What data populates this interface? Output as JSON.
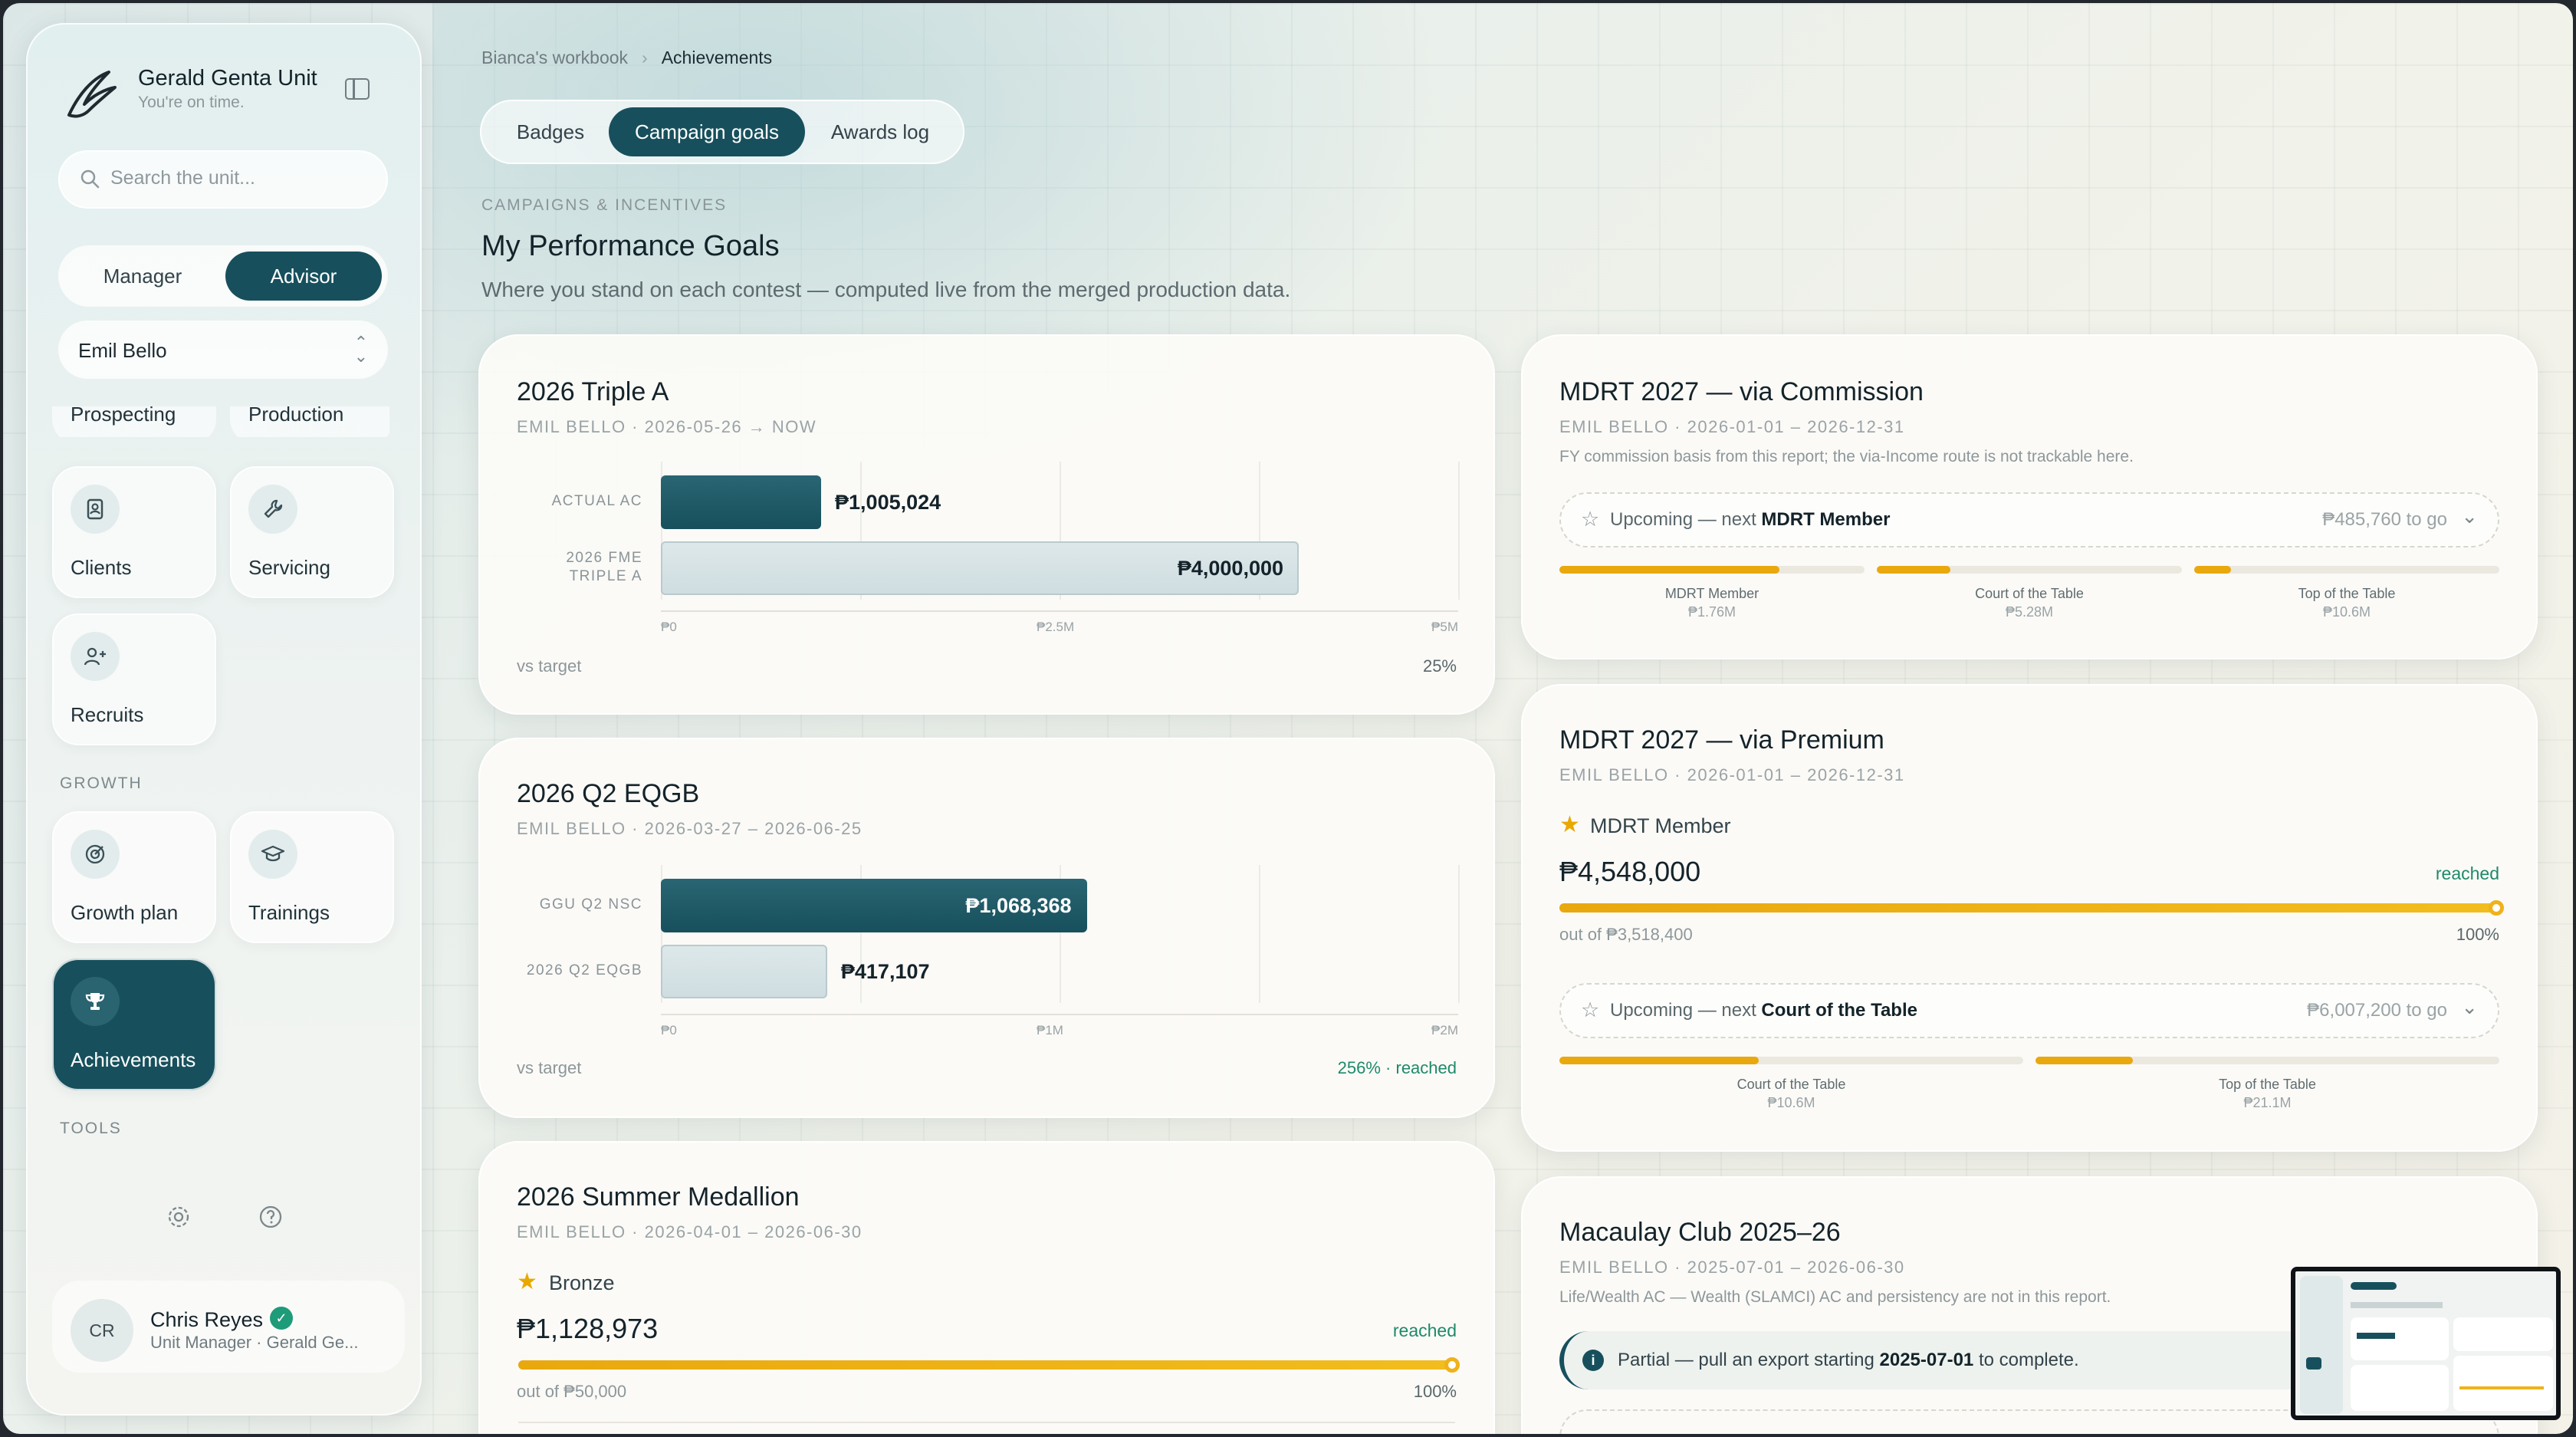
{
  "sidebar": {
    "unit_name": "Gerald Genta Unit",
    "unit_tagline": "You're on time.",
    "search_placeholder": "Search the unit...",
    "role_toggle": {
      "options": [
        "Manager",
        "Advisor"
      ],
      "selected": "Advisor"
    },
    "advisor_select": "Emil Bello",
    "partial_tiles": [
      "Prospecting",
      "Production"
    ],
    "tiles": [
      {
        "label": "Clients",
        "icon": "contacts-book-icon"
      },
      {
        "label": "Servicing",
        "icon": "wrench-icon"
      },
      {
        "label": "Recruits",
        "icon": "user-plus-icon"
      }
    ],
    "section_growth": "GROWTH",
    "growth_tiles": [
      {
        "label": "Growth plan",
        "icon": "target-icon"
      },
      {
        "label": "Trainings",
        "icon": "graduation-cap-icon"
      },
      {
        "label": "Achievements",
        "icon": "trophy-icon",
        "active": true
      }
    ],
    "section_tools": "TOOLS",
    "user": {
      "initials": "CR",
      "name": "Chris Reyes",
      "role": "Unit Manager · Gerald Ge..."
    }
  },
  "breadcrumb": {
    "parent": "Bianca's workbook",
    "current": "Achievements"
  },
  "tabs": [
    "Badges",
    "Campaign goals",
    "Awards log"
  ],
  "active_tab": "Campaign goals",
  "page": {
    "eyebrow": "CAMPAIGNS & INCENTIVES",
    "title": "My Performance Goals",
    "subtitle": "Where you stand on each contest — computed live from the merged production data."
  },
  "cards": {
    "triple_a": {
      "title": "2026 Triple A",
      "meta": "EMIL BELLO · 2026-05-26 → NOW",
      "foot_label": "vs target",
      "foot_value": "25%",
      "chart_data": {
        "type": "bar",
        "orientation": "horizontal",
        "categories": [
          "ACTUAL AC",
          "2026 FME TRIPLE A"
        ],
        "values": [
          1005024,
          4000000
        ],
        "value_labels": [
          "₱1,005,024",
          "₱4,000,000"
        ],
        "xlim": [
          0,
          5000000
        ],
        "ticks": [
          "₱0",
          "₱2.5M",
          "₱5M"
        ]
      }
    },
    "eqgb": {
      "title": "2026 Q2 EQGB",
      "meta": "EMIL BELLO · 2026-03-27 – 2026-06-25",
      "foot_label": "vs target",
      "foot_value": "256% · reached",
      "chart_data": {
        "type": "bar",
        "orientation": "horizontal",
        "categories": [
          "GGU Q2 NSC",
          "2026 Q2 EQGB"
        ],
        "values": [
          1068368,
          417107
        ],
        "value_labels": [
          "₱1,068,368",
          "₱417,107"
        ],
        "xlim": [
          0,
          2000000
        ],
        "ticks": [
          "₱0",
          "₱1M",
          "₱2M"
        ]
      }
    },
    "medallion": {
      "title": "2026 Summer Medallion",
      "meta": "EMIL BELLO · 2026-04-01 – 2026-06-30",
      "tier": "Bronze",
      "amount": "₱1,128,973",
      "status": "reached",
      "out_of": "out of ₱50,000",
      "percent": "100%",
      "progress": 1.0
    },
    "mdrt_commission": {
      "title": "MDRT 2027 — via Commission",
      "meta": "EMIL BELLO · 2026-01-01 – 2026-12-31",
      "note": "FY commission basis from this report; the via-Income route is not trackable here.",
      "upcoming_prefix": "Upcoming — next",
      "upcoming_tier": "MDRT Member",
      "to_go": "₱485,760 to go",
      "segments": [
        {
          "name": "MDRT Member",
          "amount": "₱1.76M",
          "fill": 0.72
        },
        {
          "name": "Court of the Table",
          "amount": "₱5.28M",
          "fill": 0.24
        },
        {
          "name": "Top of the Table",
          "amount": "₱10.6M",
          "fill": 0.12
        }
      ]
    },
    "mdrt_premium": {
      "title": "MDRT 2027 — via Premium",
      "meta": "EMIL BELLO · 2026-01-01 – 2026-12-31",
      "tier": "MDRT Member",
      "amount": "₱4,548,000",
      "status": "reached",
      "out_of": "out of ₱3,518,400",
      "percent": "100%",
      "progress": 1.0,
      "upcoming_prefix": "Upcoming — next",
      "upcoming_tier": "Court of the Table",
      "to_go": "₱6,007,200 to go",
      "segments": [
        {
          "name": "Court of the Table",
          "amount": "₱10.6M",
          "fill": 0.43
        },
        {
          "name": "Top of the Table",
          "amount": "₱21.1M",
          "fill": 0.21
        }
      ]
    },
    "macaulay": {
      "title": "Macaulay Club 2025–26",
      "meta": "EMIL BELLO · 2025-07-01 – 2026-06-30",
      "note": "Life/Wealth AC — Wealth (SLAMCI) AC and persistency are not in this report.",
      "alert_prefix": "Partial — pull an export starting",
      "alert_date": "2025-07-01",
      "alert_suffix": "to complete."
    }
  }
}
